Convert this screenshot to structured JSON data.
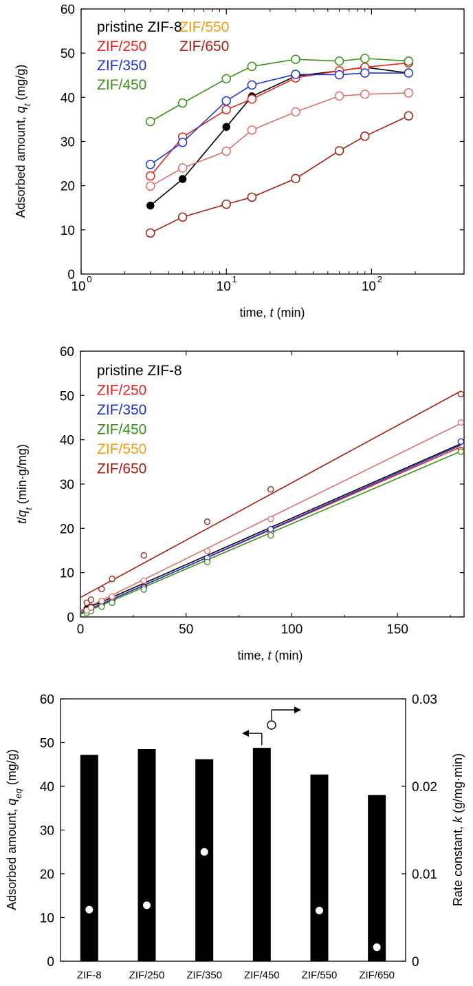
{
  "chart_data": [
    {
      "type": "line",
      "xscale": "log",
      "xlim": [
        1,
        180
      ],
      "ylim": [
        0,
        60
      ],
      "x_ticks": [
        "10⁰",
        "10¹",
        "10²"
      ],
      "y_ticks": [
        "0",
        "10",
        "20",
        "30",
        "40",
        "50",
        "60"
      ],
      "xlabel": "time, t (min)",
      "ylabel": "Adsorbed amount, qt (mg/g)",
      "legend": "top-left",
      "x": [
        3,
        5,
        10,
        15,
        30,
        60,
        90,
        180
      ],
      "series": [
        {
          "name": "pristine ZIF-8",
          "color": "#000000",
          "marker": "filled",
          "values": [
            15.5,
            21.5,
            33.3,
            40.2,
            44.8,
            46.0,
            46.8,
            45.5
          ]
        },
        {
          "name": "ZIF/250",
          "color": "#e8231c",
          "marker": "open",
          "values": [
            22.2,
            31.0,
            37.2,
            39.6,
            44.4,
            46.0,
            46.8,
            47.8
          ]
        },
        {
          "name": "ZIF/350",
          "color": "#1c32d4",
          "marker": "open",
          "values": [
            24.8,
            29.8,
            39.2,
            42.8,
            45.2,
            45.1,
            45.5,
            45.5
          ]
        },
        {
          "name": "ZIF/450",
          "color": "#3c8f1a",
          "marker": "open",
          "values": [
            34.5,
            38.7,
            44.2,
            47.0,
            48.6,
            48.2,
            48.8,
            48.2
          ]
        },
        {
          "name": "ZIF/550",
          "color": "#f39c12",
          "marker": "open",
          "values": [
            19.9,
            24.0,
            27.8,
            32.6,
            36.7,
            40.3,
            40.7,
            41.0
          ]
        },
        {
          "name": "ZIF/650",
          "color": "#a01e14",
          "marker": "open",
          "values": [
            9.3,
            12.9,
            15.8,
            17.4,
            21.6,
            27.9,
            31.2,
            35.8
          ]
        }
      ]
    },
    {
      "type": "scatter",
      "xlim": [
        0,
        180
      ],
      "ylim": [
        0,
        60
      ],
      "x_ticks": [
        "0",
        "50",
        "100",
        "150"
      ],
      "y_ticks": [
        "0",
        "10",
        "20",
        "30",
        "40",
        "50",
        "60"
      ],
      "xlabel": "time, t (min)",
      "ylabel": "t/qt (min·g/mg)",
      "legend": "top-left",
      "x": [
        3,
        5,
        10,
        15,
        30,
        60,
        90,
        180
      ],
      "series": [
        {
          "name": "pristine ZIF-8",
          "color": "#000000",
          "marker": "filled",
          "values": [
            1.9,
            2.3,
            3.0,
            3.7,
            6.9,
            13.2,
            19.4,
            39.6
          ],
          "fit": [
            1.3,
            39.1
          ]
        },
        {
          "name": "ZIF/250",
          "color": "#e8231c",
          "marker": "open",
          "values": [
            1.4,
            1.6,
            2.7,
            3.8,
            6.8,
            13.0,
            19.2,
            37.7
          ],
          "fit": [
            0.9,
            38.4
          ]
        },
        {
          "name": "ZIF/350",
          "color": "#1c32d4",
          "marker": "open",
          "values": [
            1.2,
            1.7,
            2.6,
            3.5,
            6.6,
            13.3,
            19.8,
            39.6
          ],
          "fit": [
            0.8,
            38.8
          ]
        },
        {
          "name": "ZIF/450",
          "color": "#3c8f1a",
          "marker": "open",
          "values": [
            0.9,
            1.3,
            2.3,
            3.2,
            6.2,
            12.4,
            18.4,
            37.3
          ],
          "fit": [
            0.6,
            37.4
          ]
        },
        {
          "name": "ZIF/550",
          "color": "#d9706b",
          "marker": "open",
          "values": [
            1.5,
            2.1,
            3.6,
            4.6,
            8.2,
            14.9,
            22.1,
            43.9
          ],
          "fit": [
            1.4,
            43.7
          ]
        },
        {
          "name": "ZIF/650",
          "color": "#a01e14",
          "marker": "open",
          "values": [
            3.2,
            3.9,
            6.3,
            8.6,
            13.9,
            21.5,
            28.8,
            50.3
          ],
          "fit": [
            4.4,
            51.0
          ]
        }
      ]
    },
    {
      "type": "bar",
      "categories": [
        "ZIF-8",
        "ZIF/250",
        "ZIF/350",
        "ZIF/450",
        "ZIF/550",
        "ZIF/650"
      ],
      "values": [
        47.2,
        48.5,
        46.2,
        48.8,
        42.7,
        38.0
      ],
      "ylim": [
        0,
        60
      ],
      "y_ticks": [
        "0",
        "10",
        "20",
        "30",
        "40",
        "50",
        "60"
      ],
      "ylabel": "Adsorbed amount, qeq (mg/g)",
      "secondary": {
        "values": [
          0.0059,
          0.0064,
          0.0125,
          null,
          0.0058,
          0.0016
        ],
        "ylim": [
          0,
          0.03
        ],
        "y_ticks": [
          "0",
          "0.01",
          "0.02",
          "0.03"
        ],
        "ylabel": "Rate constant, k (g/mg·min)"
      }
    }
  ],
  "legend_overrides": {
    "chart1_ZIF550_label_color": "#f39c12",
    "chart1_ZIF550_line_color": "#d9706b",
    "chart2_ZIF550_label_color": "#f39c12"
  }
}
